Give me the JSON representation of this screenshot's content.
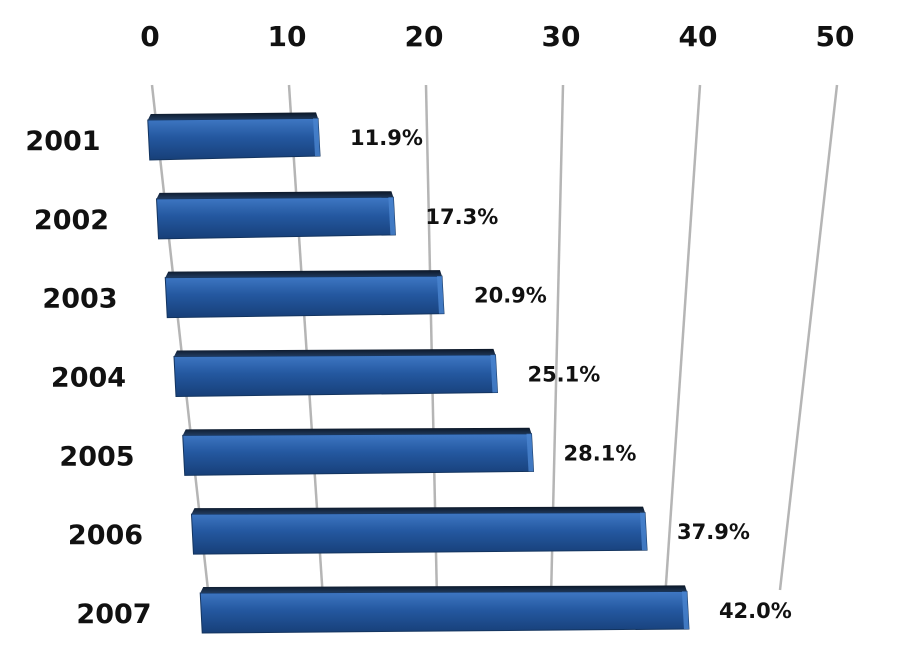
{
  "chart_data": {
    "type": "bar",
    "orientation": "horizontal",
    "categories": [
      "2001",
      "2002",
      "2003",
      "2004",
      "2005",
      "2006",
      "2007"
    ],
    "values": [
      11.9,
      17.3,
      20.9,
      25.1,
      28.1,
      37.9,
      42.0
    ],
    "data_labels": [
      "11.9%",
      "17.3%",
      "20.9%",
      "25.1%",
      "28.1%",
      "37.9%",
      "42.0%"
    ],
    "x_ticks": [
      "0",
      "10",
      "20",
      "30",
      "40",
      "50"
    ],
    "xlim": [
      0,
      50
    ],
    "x_axis_position": "top",
    "grid": true,
    "bar_color": "#2458a0",
    "title": "",
    "xlabel": "",
    "ylabel": ""
  }
}
